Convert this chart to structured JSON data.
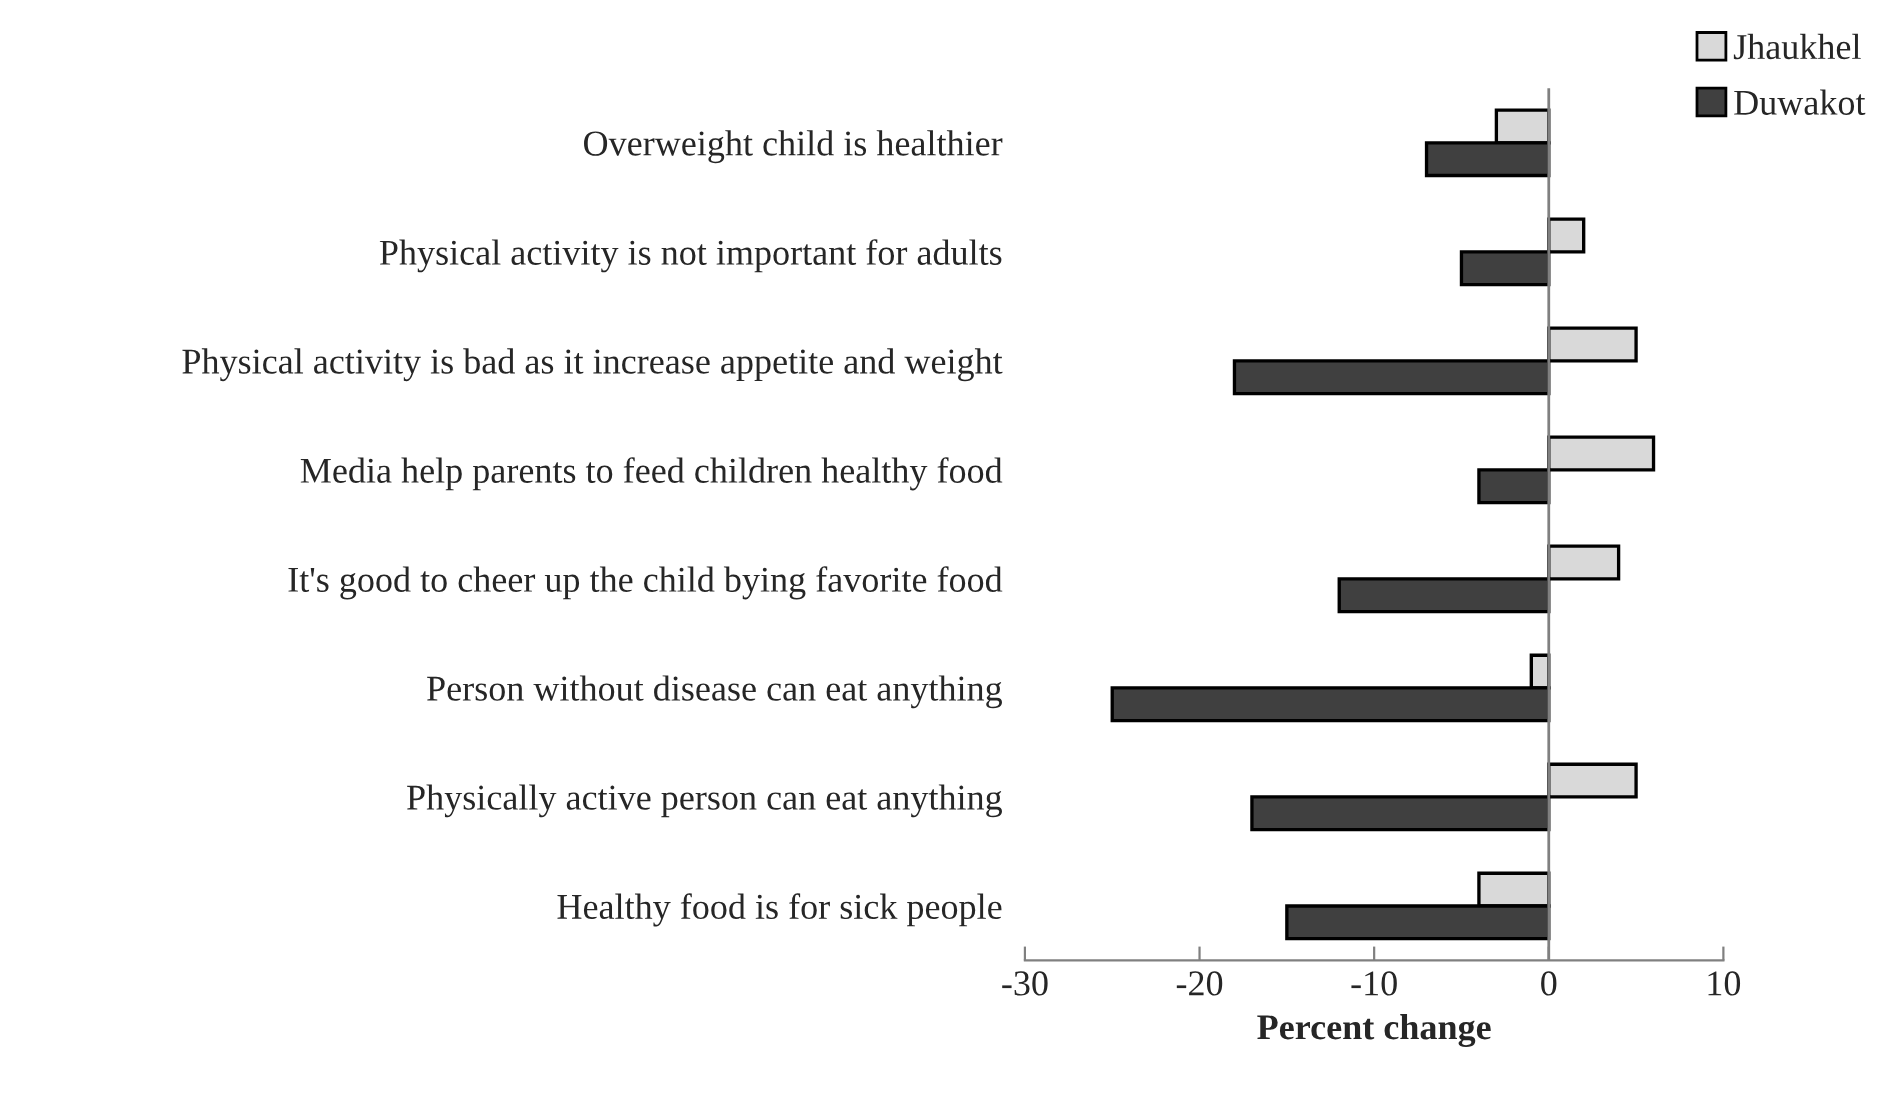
{
  "chart_data": {
    "type": "bar",
    "orientation": "horizontal",
    "xlabel": "Percent change",
    "categories": [
      "Overweight child is healthier",
      "Physical activity is not important for adults",
      "Physical activity is bad as it increase appetite and weight",
      "Media help parents to feed children healthy food",
      "It's good to cheer up the child bying favorite food",
      "Person without disease can eat anything",
      "Physically active person can eat anything",
      "Healthy food is for sick people"
    ],
    "series": [
      {
        "name": "Jhaukhel",
        "color": "#d9d9d9",
        "values": [
          -3,
          2,
          5,
          6,
          4,
          -1,
          5,
          -4
        ]
      },
      {
        "name": "Duwakot",
        "color": "#404040",
        "values": [
          -7,
          -5,
          -18,
          -4,
          -12,
          -25,
          -17,
          -15
        ]
      }
    ],
    "ref_lines": [
      {
        "axis": "x",
        "value": 0,
        "color": "#808080"
      }
    ],
    "xlim": [
      -30,
      10
    ],
    "xticks": [
      -30,
      -20,
      -10,
      0,
      10
    ],
    "grid": false,
    "legend": "top right"
  }
}
